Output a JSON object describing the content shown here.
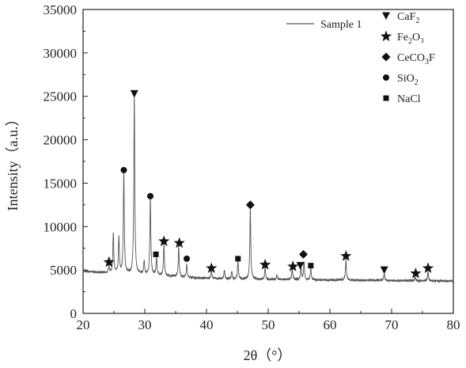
{
  "chart_data": {
    "type": "line",
    "title": "",
    "xlabel": "2θ（°）",
    "ylabel": "Intensity（a.u.）",
    "xlim": [
      20,
      80
    ],
    "ylim": [
      0,
      35000
    ],
    "xticks": [
      20,
      30,
      40,
      50,
      60,
      70,
      80
    ],
    "yticks": [
      0,
      5000,
      10000,
      15000,
      20000,
      25000,
      30000,
      35000
    ],
    "grid": false,
    "legend_position": "top-right",
    "series": [
      {
        "name": "Sample 1",
        "color": "#555555",
        "baseline": [
          [
            20,
            4850
          ],
          [
            22,
            4750
          ],
          [
            24,
            4650
          ],
          [
            26,
            4600
          ],
          [
            28,
            4550
          ],
          [
            30,
            4500
          ],
          [
            32,
            4400
          ],
          [
            34,
            4300
          ],
          [
            36,
            4200
          ],
          [
            38,
            4100
          ],
          [
            40,
            4050
          ],
          [
            42,
            4000
          ],
          [
            44,
            3950
          ],
          [
            46,
            3950
          ],
          [
            48,
            3950
          ],
          [
            50,
            3900
          ],
          [
            52,
            3900
          ],
          [
            54,
            3880
          ],
          [
            56,
            3850
          ],
          [
            58,
            3850
          ],
          [
            60,
            3850
          ],
          [
            62,
            3850
          ],
          [
            64,
            3830
          ],
          [
            66,
            3800
          ],
          [
            68,
            3800
          ],
          [
            70,
            3780
          ],
          [
            72,
            3780
          ],
          [
            74,
            3760
          ],
          [
            76,
            3750
          ],
          [
            78,
            3740
          ],
          [
            80,
            3730
          ]
        ],
        "peaks": [
          [
            24.2,
            5600
          ],
          [
            24.9,
            9200
          ],
          [
            25.8,
            8700
          ],
          [
            26.6,
            16300
          ],
          [
            28.3,
            25000
          ],
          [
            29.9,
            6000
          ],
          [
            30.9,
            13200
          ],
          [
            31.9,
            6400
          ],
          [
            33.1,
            8000
          ],
          [
            35.5,
            7700
          ],
          [
            36.8,
            5600
          ],
          [
            40.8,
            4900
          ],
          [
            42.9,
            5000
          ],
          [
            44.1,
            4800
          ],
          [
            45.1,
            6000
          ],
          [
            47.1,
            12000
          ],
          [
            49.5,
            5300
          ],
          [
            51.4,
            4400
          ],
          [
            53.9,
            5200
          ],
          [
            55.3,
            5300
          ],
          [
            55.8,
            6000
          ],
          [
            56.9,
            5100
          ],
          [
            62.6,
            6200
          ],
          [
            68.8,
            4600
          ],
          [
            73.8,
            4200
          ],
          [
            75.9,
            4800
          ]
        ]
      }
    ],
    "legend": [
      {
        "marker": "triangle-down",
        "label": "CaF",
        "sub": "2",
        "tail": ""
      },
      {
        "marker": "star",
        "label": "Fe",
        "sub": "2",
        "tail": "O₃"
      },
      {
        "marker": "diamond",
        "label": "CeCO",
        "sub": "3",
        "tail": "F"
      },
      {
        "marker": "circle",
        "label": "SiO",
        "sub": "2",
        "tail": ""
      },
      {
        "marker": "square",
        "label": "NaCl",
        "sub": "",
        "tail": ""
      }
    ],
    "markers": [
      {
        "phase": "CaF2",
        "shape": "triangle-down",
        "x": 28.3,
        "y": 25300
      },
      {
        "phase": "CaF2",
        "shape": "triangle-down",
        "x": 55.2,
        "y": 5500
      },
      {
        "phase": "CaF2",
        "shape": "triangle-down",
        "x": 68.8,
        "y": 5000
      },
      {
        "phase": "Fe2O3",
        "shape": "star",
        "x": 24.2,
        "y": 5900
      },
      {
        "phase": "Fe2O3",
        "shape": "star",
        "x": 33.1,
        "y": 8300
      },
      {
        "phase": "Fe2O3",
        "shape": "star",
        "x": 35.6,
        "y": 8100
      },
      {
        "phase": "Fe2O3",
        "shape": "star",
        "x": 40.8,
        "y": 5200
      },
      {
        "phase": "Fe2O3",
        "shape": "star",
        "x": 49.5,
        "y": 5600
      },
      {
        "phase": "Fe2O3",
        "shape": "star",
        "x": 54.0,
        "y": 5400
      },
      {
        "phase": "Fe2O3",
        "shape": "star",
        "x": 62.6,
        "y": 6600
      },
      {
        "phase": "Fe2O3",
        "shape": "star",
        "x": 73.9,
        "y": 4600
      },
      {
        "phase": "Fe2O3",
        "shape": "star",
        "x": 75.9,
        "y": 5200
      },
      {
        "phase": "CeCO3F",
        "shape": "diamond",
        "x": 47.1,
        "y": 12500
      },
      {
        "phase": "CeCO3F",
        "shape": "diamond",
        "x": 55.7,
        "y": 6800
      },
      {
        "phase": "SiO2",
        "shape": "circle",
        "x": 26.6,
        "y": 16500
      },
      {
        "phase": "SiO2",
        "shape": "circle",
        "x": 30.9,
        "y": 13500
      },
      {
        "phase": "SiO2",
        "shape": "circle",
        "x": 36.8,
        "y": 6300
      },
      {
        "phase": "NaCl",
        "shape": "square",
        "x": 31.8,
        "y": 6800
      },
      {
        "phase": "NaCl",
        "shape": "square",
        "x": 45.1,
        "y": 6300
      },
      {
        "phase": "NaCl",
        "shape": "square",
        "x": 56.9,
        "y": 5500
      }
    ]
  }
}
